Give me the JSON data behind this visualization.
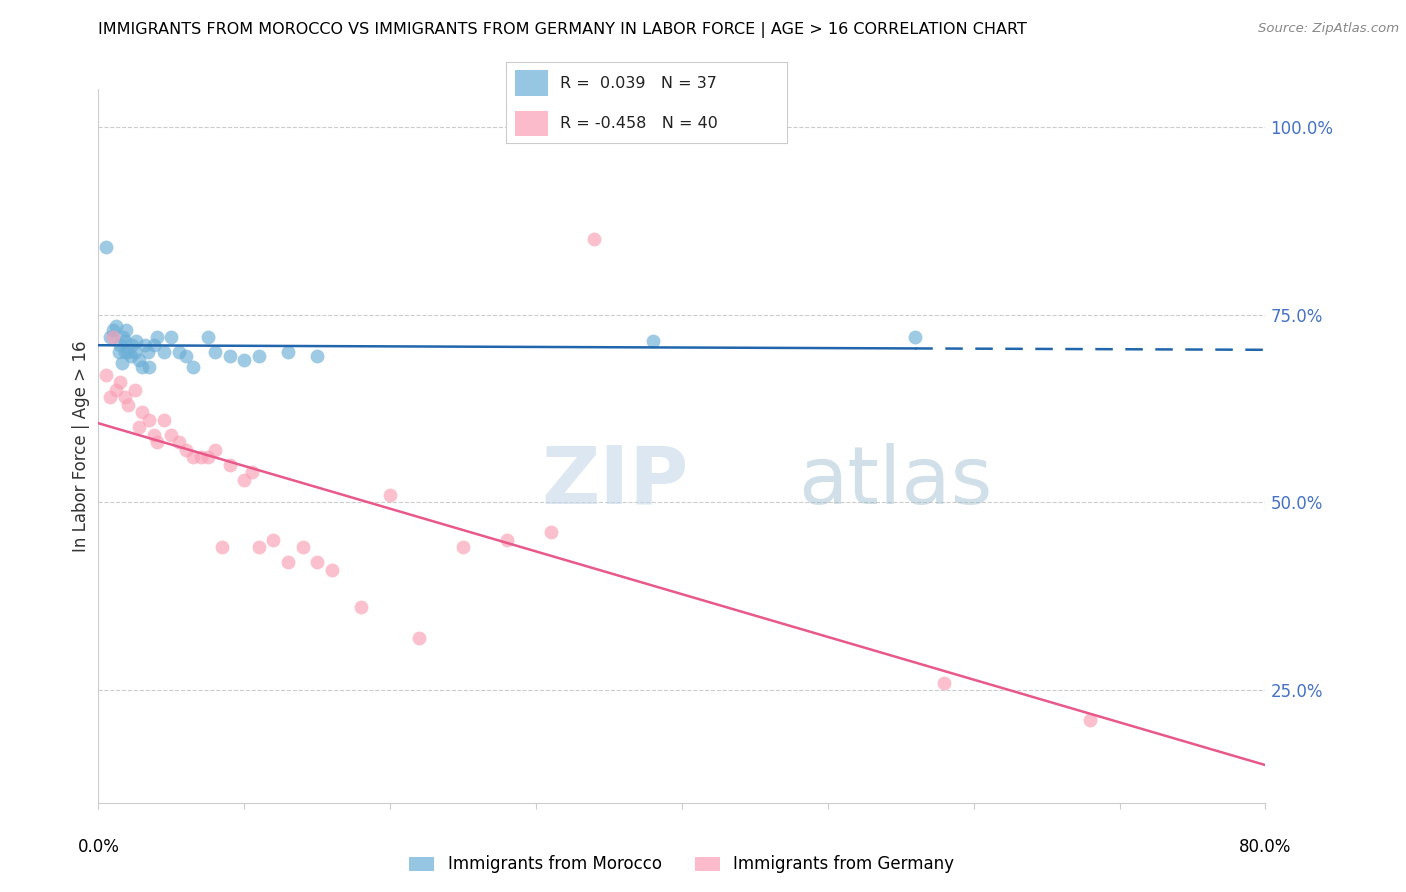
{
  "title": "IMMIGRANTS FROM MOROCCO VS IMMIGRANTS FROM GERMANY IN LABOR FORCE | AGE > 16 CORRELATION CHART",
  "source": "Source: ZipAtlas.com",
  "ylabel": "In Labor Force | Age > 16",
  "ytick_labels": [
    "100.0%",
    "75.0%",
    "50.0%",
    "25.0%"
  ],
  "ytick_values": [
    1.0,
    0.75,
    0.5,
    0.25
  ],
  "xlim": [
    0.0,
    0.8
  ],
  "ylim": [
    0.1,
    1.05
  ],
  "morocco_R": 0.039,
  "morocco_N": 37,
  "germany_R": -0.458,
  "germany_N": 40,
  "morocco_color": "#6baed6",
  "germany_color": "#fa9fb5",
  "morocco_line_color": "#2166ac",
  "germany_line_color": "#e8588a",
  "morocco_x": [
    0.005,
    0.008,
    0.01,
    0.012,
    0.014,
    0.015,
    0.016,
    0.017,
    0.018,
    0.018,
    0.019,
    0.02,
    0.022,
    0.023,
    0.025,
    0.026,
    0.028,
    0.03,
    0.032,
    0.034,
    0.035,
    0.038,
    0.04,
    0.045,
    0.05,
    0.055,
    0.06,
    0.065,
    0.075,
    0.08,
    0.09,
    0.1,
    0.11,
    0.13,
    0.15,
    0.38,
    0.56
  ],
  "morocco_y": [
    0.84,
    0.72,
    0.73,
    0.735,
    0.7,
    0.71,
    0.685,
    0.72,
    0.7,
    0.715,
    0.73,
    0.7,
    0.695,
    0.71,
    0.7,
    0.715,
    0.69,
    0.68,
    0.71,
    0.7,
    0.68,
    0.71,
    0.72,
    0.7,
    0.72,
    0.7,
    0.695,
    0.68,
    0.72,
    0.7,
    0.695,
    0.69,
    0.695,
    0.7,
    0.695,
    0.715,
    0.72
  ],
  "germany_x": [
    0.005,
    0.008,
    0.01,
    0.012,
    0.015,
    0.018,
    0.02,
    0.025,
    0.028,
    0.03,
    0.035,
    0.038,
    0.04,
    0.045,
    0.05,
    0.055,
    0.06,
    0.065,
    0.07,
    0.075,
    0.08,
    0.085,
    0.09,
    0.1,
    0.105,
    0.11,
    0.12,
    0.13,
    0.14,
    0.15,
    0.16,
    0.18,
    0.2,
    0.22,
    0.25,
    0.28,
    0.31,
    0.34,
    0.58,
    0.68
  ],
  "germany_y": [
    0.67,
    0.64,
    0.72,
    0.65,
    0.66,
    0.64,
    0.63,
    0.65,
    0.6,
    0.62,
    0.61,
    0.59,
    0.58,
    0.61,
    0.59,
    0.58,
    0.57,
    0.56,
    0.56,
    0.56,
    0.57,
    0.44,
    0.55,
    0.53,
    0.54,
    0.44,
    0.45,
    0.42,
    0.44,
    0.42,
    0.41,
    0.36,
    0.51,
    0.32,
    0.44,
    0.45,
    0.46,
    0.85,
    0.26,
    0.21
  ]
}
